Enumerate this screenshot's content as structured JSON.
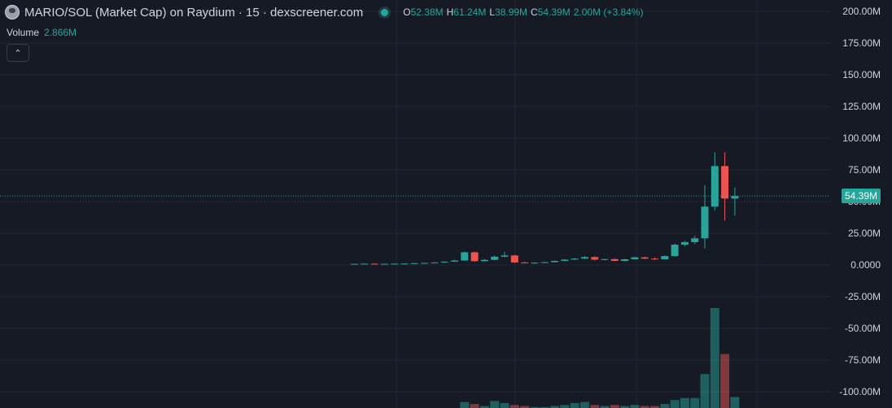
{
  "header": {
    "title": "MARIO/SOL (Market Cap) on Raydium · 15 · dexscreener.com",
    "ohlc": {
      "o_label": "O",
      "o_value": "52.38M",
      "h_label": "H",
      "h_value": "61.24M",
      "l_label": "L",
      "l_value": "38.99M",
      "c_label": "C",
      "c_value": "54.39M",
      "change": "2.00M (+3.84%)"
    }
  },
  "volume": {
    "label": "Volume",
    "value": "2.866M"
  },
  "collapse_icon": "chevron-up-icon",
  "last_price_label": "54.39M",
  "colors": {
    "up": "#26a69a",
    "down": "#ef5350",
    "background": "#161a25",
    "grid": "#232632"
  },
  "chart_data": {
    "type": "candlestick",
    "y_axis_ticks": [
      "200.00M",
      "175.00M",
      "150.00M",
      "125.00M",
      "100.00M",
      "75.00M",
      "50.00M",
      "25.00M",
      "0.0000",
      "-25.00M",
      "-50.00M",
      "-75.00M",
      "-100.00M"
    ],
    "ylim_millions": [
      -100,
      200
    ],
    "last_close_millions": 54.39,
    "candles_millions": [
      {
        "o": 0.8,
        "h": 1.0,
        "l": 0.6,
        "c": 0.9
      },
      {
        "o": 0.9,
        "h": 1.1,
        "l": 0.8,
        "c": 1.0
      },
      {
        "o": 1.0,
        "h": 1.2,
        "l": 0.7,
        "c": 0.8
      },
      {
        "o": 0.8,
        "h": 1.0,
        "l": 0.7,
        "c": 0.9
      },
      {
        "o": 0.9,
        "h": 1.1,
        "l": 0.8,
        "c": 1.0
      },
      {
        "o": 1.0,
        "h": 1.3,
        "l": 0.9,
        "c": 1.1
      },
      {
        "o": 1.1,
        "h": 1.5,
        "l": 1.0,
        "c": 1.4
      },
      {
        "o": 1.4,
        "h": 1.8,
        "l": 1.3,
        "c": 1.6
      },
      {
        "o": 1.6,
        "h": 2.2,
        "l": 1.5,
        "c": 2.0
      },
      {
        "o": 2.0,
        "h": 3.0,
        "l": 1.8,
        "c": 2.6
      },
      {
        "o": 2.6,
        "h": 4.0,
        "l": 2.4,
        "c": 3.5
      },
      {
        "o": 3.5,
        "h": 10.5,
        "l": 3.2,
        "c": 10.0
      },
      {
        "o": 10.0,
        "h": 10.5,
        "l": 2.5,
        "c": 3.0
      },
      {
        "o": 3.0,
        "h": 4.5,
        "l": 2.5,
        "c": 4.0
      },
      {
        "o": 4.0,
        "h": 7.5,
        "l": 3.5,
        "c": 6.5
      },
      {
        "o": 6.5,
        "h": 10.5,
        "l": 6.0,
        "c": 7.5
      },
      {
        "o": 7.5,
        "h": 8.0,
        "l": 1.5,
        "c": 2.0
      },
      {
        "o": 2.0,
        "h": 2.6,
        "l": 1.2,
        "c": 1.5
      },
      {
        "o": 1.5,
        "h": 2.2,
        "l": 1.0,
        "c": 1.8
      },
      {
        "o": 1.8,
        "h": 2.5,
        "l": 1.5,
        "c": 2.2
      },
      {
        "o": 2.2,
        "h": 3.5,
        "l": 2.0,
        "c": 3.2
      },
      {
        "o": 3.2,
        "h": 4.5,
        "l": 3.0,
        "c": 4.2
      },
      {
        "o": 4.2,
        "h": 5.5,
        "l": 3.8,
        "c": 5.0
      },
      {
        "o": 5.0,
        "h": 7.0,
        "l": 4.6,
        "c": 6.2
      },
      {
        "o": 6.2,
        "h": 6.8,
        "l": 3.6,
        "c": 4.2
      },
      {
        "o": 4.2,
        "h": 5.0,
        "l": 3.5,
        "c": 4.6
      },
      {
        "o": 4.6,
        "h": 5.2,
        "l": 2.8,
        "c": 3.2
      },
      {
        "o": 3.2,
        "h": 4.8,
        "l": 3.0,
        "c": 4.5
      },
      {
        "o": 4.5,
        "h": 6.5,
        "l": 4.2,
        "c": 6.0
      },
      {
        "o": 6.0,
        "h": 6.5,
        "l": 4.5,
        "c": 5.0
      },
      {
        "o": 5.0,
        "h": 6.0,
        "l": 4.0,
        "c": 4.5
      },
      {
        "o": 4.5,
        "h": 7.5,
        "l": 4.3,
        "c": 7.0
      },
      {
        "o": 7.0,
        "h": 17.0,
        "l": 6.5,
        "c": 16.0
      },
      {
        "o": 16.0,
        "h": 19.0,
        "l": 14.5,
        "c": 18.0
      },
      {
        "o": 18.0,
        "h": 23.0,
        "l": 16.5,
        "c": 21.0
      },
      {
        "o": 21.0,
        "h": 63.0,
        "l": 13.0,
        "c": 46.0
      },
      {
        "o": 46.0,
        "h": 89.0,
        "l": 43.0,
        "c": 78.0
      },
      {
        "o": 78.0,
        "h": 89.0,
        "l": 35.0,
        "c": 52.38
      },
      {
        "o": 52.38,
        "h": 61.24,
        "l": 38.99,
        "c": 54.39
      }
    ],
    "volume_relative": [
      0,
      0,
      0,
      0,
      0,
      0,
      0,
      0,
      0,
      0,
      0,
      0.06,
      0.04,
      0.02,
      0.07,
      0.05,
      0.03,
      0.02,
      0.01,
      0.01,
      0.02,
      0.03,
      0.05,
      0.06,
      0.03,
      0.02,
      0.03,
      0.02,
      0.03,
      0.02,
      0.02,
      0.04,
      0.08,
      0.1,
      0.1,
      0.34,
      1.0,
      0.54,
      0.11
    ]
  }
}
